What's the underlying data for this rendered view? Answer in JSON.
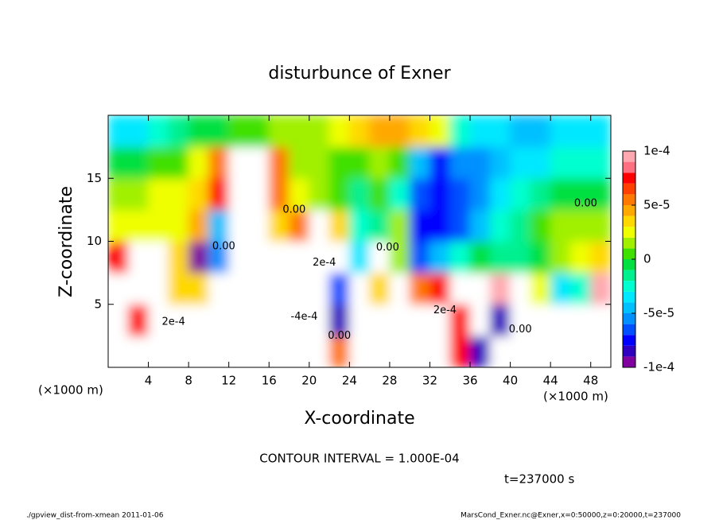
{
  "chart_data": {
    "type": "heatmap",
    "title": "disturbunce of Exner",
    "xlabel": "X-coordinate",
    "ylabel": "Z-coordinate",
    "x_unit_label": "(×1000 m)",
    "y_unit_label": "(×1000 m)",
    "contour_interval": "CONTOUR INTERVAL = 1.000E-04",
    "time_label": "t=237000 s",
    "footer_left": "./gpview_dist-from-xmean  2011-01-06",
    "footer_right": "MarsCond_Exner.nc@Exner,x=0:50000,z=0:20000,t=237000",
    "xlim": [
      0,
      50
    ],
    "ylim": [
      0,
      20
    ],
    "xticks": [
      4,
      8,
      12,
      16,
      20,
      24,
      28,
      32,
      36,
      40,
      44,
      48
    ],
    "yticks": [
      5,
      10,
      15
    ],
    "x": [
      1,
      3,
      5,
      7,
      9,
      11,
      13,
      15,
      17,
      19,
      21,
      23,
      25,
      27,
      29,
      31,
      33,
      35,
      37,
      39,
      41,
      43,
      45,
      47,
      49
    ],
    "y": [
      1.25,
      3.75,
      6.25,
      8.75,
      11.25,
      13.75,
      16.25,
      18.75
    ],
    "z": [
      [
        0.00015,
        0.00015,
        0.00015,
        0.00015,
        0.00015,
        0.00015,
        0.00015,
        0.00015,
        -0.00015,
        -0.00015,
        -0.00015,
        6e-05,
        0.00015,
        0.00015,
        0.00015,
        0.00015,
        0.00015,
        8e-05,
        -8e-05,
        -0.00015,
        0.00015,
        -0.00015,
        -0.00015,
        -0.00015,
        -0.00015
      ],
      [
        0.00015,
        8e-05,
        0.00015,
        0.00015,
        0.00015,
        0.00015,
        0.00015,
        0.00015,
        -0.00015,
        -0.00015,
        -0.00015,
        -8e-05,
        0.00015,
        0.00015,
        0.00015,
        0.00015,
        0.00015,
        8e-05,
        -0.00015,
        -8e-05,
        -0.00015,
        -0.00015,
        -0.00015,
        -0.00015,
        -0.00015
      ],
      [
        0.00015,
        0.00015,
        0.00015,
        4e-05,
        4e-05,
        0.00015,
        0.00015,
        0.00015,
        -0.00015,
        -0.00015,
        -0.00015,
        -6e-05,
        0.00015,
        4e-05,
        0.00015,
        6e-05,
        8e-05,
        0.00015,
        0.00015,
        0.0001,
        0.00015,
        3e-05,
        -3e-05,
        -2e-05,
        0.0001
      ],
      [
        8e-05,
        0.00015,
        0.00015,
        4e-05,
        -9e-05,
        -5e-05,
        0.00015,
        0.00015,
        -0.00015,
        -0.00015,
        0.00015,
        0.00015,
        -3e-05,
        0.00015,
        2e-05,
        -6e-05,
        -4e-05,
        -2e-05,
        0,
        -1e-05,
        -1e-05,
        0,
        2e-05,
        3e-05,
        4e-05
      ],
      [
        3e-05,
        3e-05,
        3e-05,
        3e-05,
        5e-05,
        -4e-05,
        0.00015,
        0.00015,
        4e-05,
        6e-05,
        0.00015,
        4e-05,
        -2e-05,
        -1e-05,
        2e-05,
        -7e-05,
        -7e-05,
        -6e-05,
        -4e-05,
        -2e-05,
        -1e-05,
        1e-05,
        2e-05,
        2e-05,
        2e-05
      ],
      [
        2e-05,
        2e-05,
        3e-05,
        3e-05,
        4e-05,
        8e-05,
        0.00015,
        0.00015,
        6e-05,
        3e-05,
        2e-05,
        1e-05,
        -1e-05,
        1e-05,
        -2e-05,
        -6e-05,
        -7e-05,
        -6e-05,
        -5e-05,
        -3e-05,
        -2e-05,
        -1e-05,
        0,
        0,
        0
      ],
      [
        0,
        0,
        1e-05,
        1e-05,
        3e-05,
        6e-05,
        0.00012,
        0.00015,
        6e-05,
        2e-05,
        2e-05,
        1e-05,
        1e-05,
        2e-05,
        1e-05,
        -4e-05,
        -7e-05,
        -5e-05,
        -5e-05,
        -4e-05,
        -3e-05,
        -3e-05,
        -2e-05,
        -2e-05,
        -2e-05
      ],
      [
        -3e-05,
        -3e-05,
        -2e-05,
        -1e-05,
        0,
        0,
        1e-05,
        1e-05,
        2e-05,
        2e-05,
        2e-05,
        3e-05,
        4e-05,
        5e-05,
        5e-05,
        4e-05,
        3e-05,
        -2e-05,
        -3e-05,
        -3e-05,
        -4e-05,
        -4e-05,
        -3e-05,
        -3e-05,
        -3e-05
      ]
    ],
    "levels": [
      -0.0001,
      -9e-05,
      -8e-05,
      -7e-05,
      -6e-05,
      -5e-05,
      -4e-05,
      -3e-05,
      -2e-05,
      -1e-05,
      0,
      1e-05,
      2e-05,
      3e-05,
      4e-05,
      5e-05,
      6e-05,
      7e-05,
      8e-05,
      9e-05,
      0.0001
    ],
    "colors": [
      "#8000a0",
      "#3000c0",
      "#0000ff",
      "#0050ff",
      "#0090ff",
      "#00c0ff",
      "#00e8ff",
      "#00ffd0",
      "#00f090",
      "#00e040",
      "#40e000",
      "#a0f000",
      "#f0ff00",
      "#ffd800",
      "#ffa800",
      "#ff7800",
      "#ff4000",
      "#ff0000",
      "#ff7080",
      "#ffa8b0"
    ],
    "out_of_range_color": "#ffffff",
    "colorbar_ticks": [
      {
        "value": 0.0001,
        "label": "1e-4"
      },
      {
        "value": 5e-05,
        "label": "5e-5"
      },
      0,
      {
        "value": -5e-05,
        "label": "-5e-5"
      },
      {
        "value": -0.0001,
        "label": "-1e-4"
      }
    ],
    "annotations": [
      {
        "text": "0.00",
        "x": 18.5,
        "y": 12.5
      },
      {
        "text": "0.00",
        "x": 11.5,
        "y": 9.6
      },
      {
        "text": "0.00",
        "x": 27.8,
        "y": 9.5
      },
      {
        "text": "0.00",
        "x": 47.5,
        "y": 13
      },
      {
        "text": "0.00",
        "x": 23,
        "y": 2.5
      },
      {
        "text": "0.00",
        "x": 41,
        "y": 3
      },
      {
        "text": "2e-4",
        "x": 6.5,
        "y": 3.6
      },
      {
        "text": "2e-4",
        "x": 21.5,
        "y": 8.3
      },
      {
        "text": "2e-4",
        "x": 33.5,
        "y": 4.5
      },
      {
        "text": "-4e-4",
        "x": 19.5,
        "y": 4
      }
    ]
  }
}
